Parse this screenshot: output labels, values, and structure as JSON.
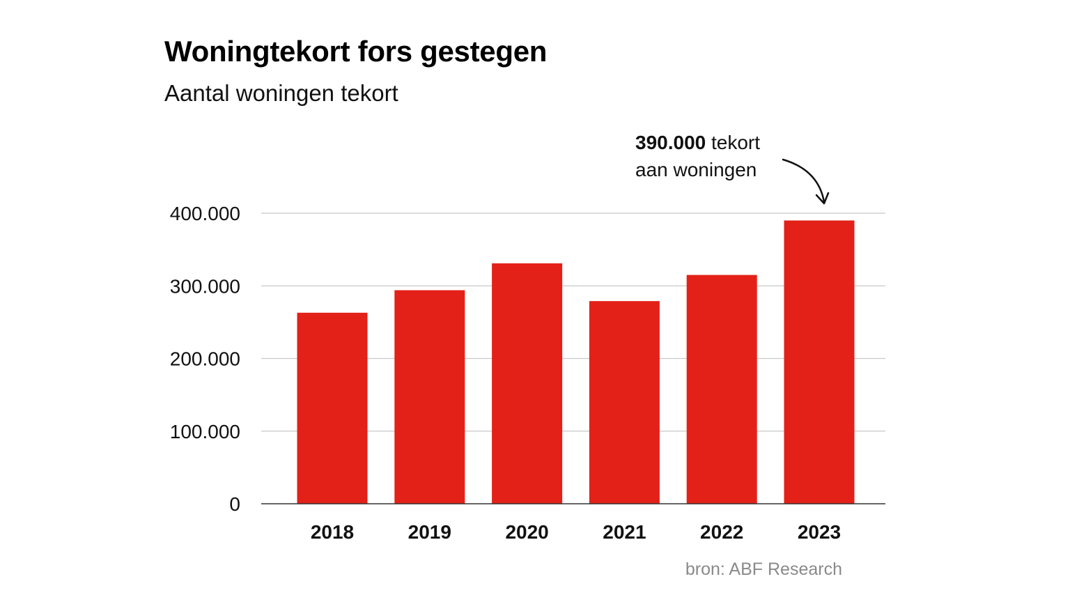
{
  "title": "Woningtekort fors gestegen",
  "subtitle": "Aantal woningen tekort",
  "source": "bron: ABF Research",
  "colors": {
    "bar": "#e32118",
    "grid": "#c8c8c8",
    "axis": "#333333"
  },
  "annotation": {
    "value": "390.000",
    "line1_rest": " tekort",
    "line2": "aan woningen"
  },
  "chart_data": {
    "type": "bar",
    "categories": [
      "2018",
      "2019",
      "2020",
      "2021",
      "2022",
      "2023"
    ],
    "values": [
      263000,
      294000,
      331000,
      279000,
      315000,
      390000
    ],
    "ylim": [
      0,
      400000
    ],
    "yticks": [
      0,
      100000,
      200000,
      300000,
      400000
    ],
    "ytick_labels": [
      "0",
      "100.000",
      "200.000",
      "300.000",
      "400.000"
    ],
    "grid": true,
    "xlabel": "",
    "ylabel": ""
  }
}
